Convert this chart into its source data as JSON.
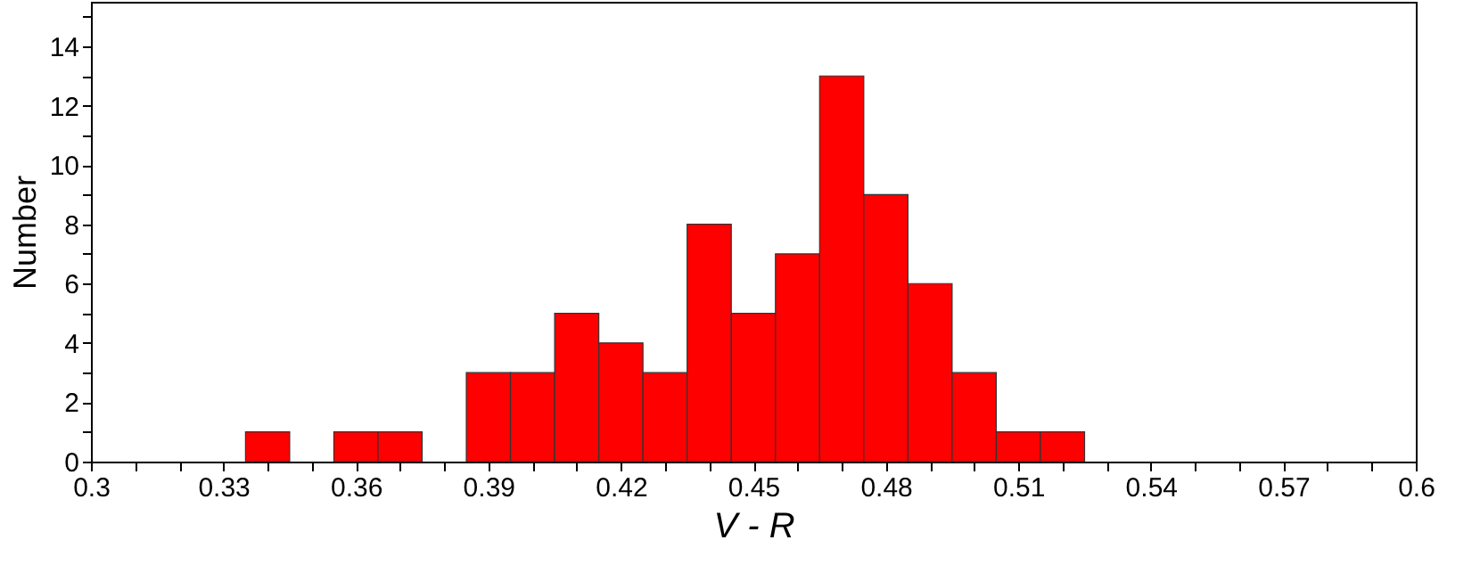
{
  "chart_data": {
    "type": "histogram",
    "xlabel": "V - R",
    "ylabel": "Number",
    "color": "#ff0000",
    "bins": [
      0.335,
      0.345,
      0.355,
      0.365,
      0.375,
      0.385,
      0.395,
      0.405,
      0.415,
      0.425,
      0.435,
      0.445,
      0.455,
      0.465,
      0.475,
      0.485,
      0.495,
      0.505,
      0.515,
      0.525
    ],
    "values": [
      1,
      0,
      1,
      1,
      0,
      3,
      3,
      5,
      4,
      3,
      8,
      5,
      7,
      13,
      9,
      6,
      3,
      1,
      1
    ],
    "xlim": [
      0.3,
      0.6
    ],
    "xticks": [
      0.3,
      {
        "value": 0.31,
        "label": null
      },
      {
        "value": 0.32,
        "label": null
      },
      0.33,
      {
        "value": 0.34,
        "label": null
      },
      {
        "value": 0.35,
        "label": null
      },
      0.36,
      {
        "value": 0.37,
        "label": null
      },
      {
        "value": 0.38,
        "label": null
      },
      0.39,
      {
        "value": 0.4,
        "label": null
      },
      {
        "value": 0.41,
        "label": null
      },
      0.42,
      {
        "value": 0.43,
        "label": null
      },
      {
        "value": 0.44,
        "label": null
      },
      0.45,
      {
        "value": 0.46,
        "label": null
      },
      {
        "value": 0.47,
        "label": null
      },
      0.48,
      {
        "value": 0.49,
        "label": null
      },
      {
        "value": 0.5,
        "label": null
      },
      0.51,
      {
        "value": 0.52,
        "label": null
      },
      {
        "value": 0.53,
        "label": null
      },
      0.54,
      {
        "value": 0.55,
        "label": null
      },
      {
        "value": 0.56,
        "label": null
      },
      0.57,
      {
        "value": 0.58,
        "label": null
      },
      {
        "value": 0.59,
        "label": null
      },
      0.6
    ],
    "ylim": [
      0,
      15.5
    ],
    "yticks": [
      0,
      {
        "value": 1,
        "label": null
      },
      2,
      {
        "value": 3,
        "label": null
      },
      4,
      {
        "value": 5,
        "label": null
      },
      6,
      {
        "value": 7,
        "label": null
      },
      8,
      {
        "value": 9,
        "label": null
      },
      10,
      {
        "value": 11,
        "label": null
      },
      12,
      {
        "value": 13,
        "label": null
      },
      14,
      {
        "value": 15,
        "label": null
      }
    ],
    "grid": false
  }
}
